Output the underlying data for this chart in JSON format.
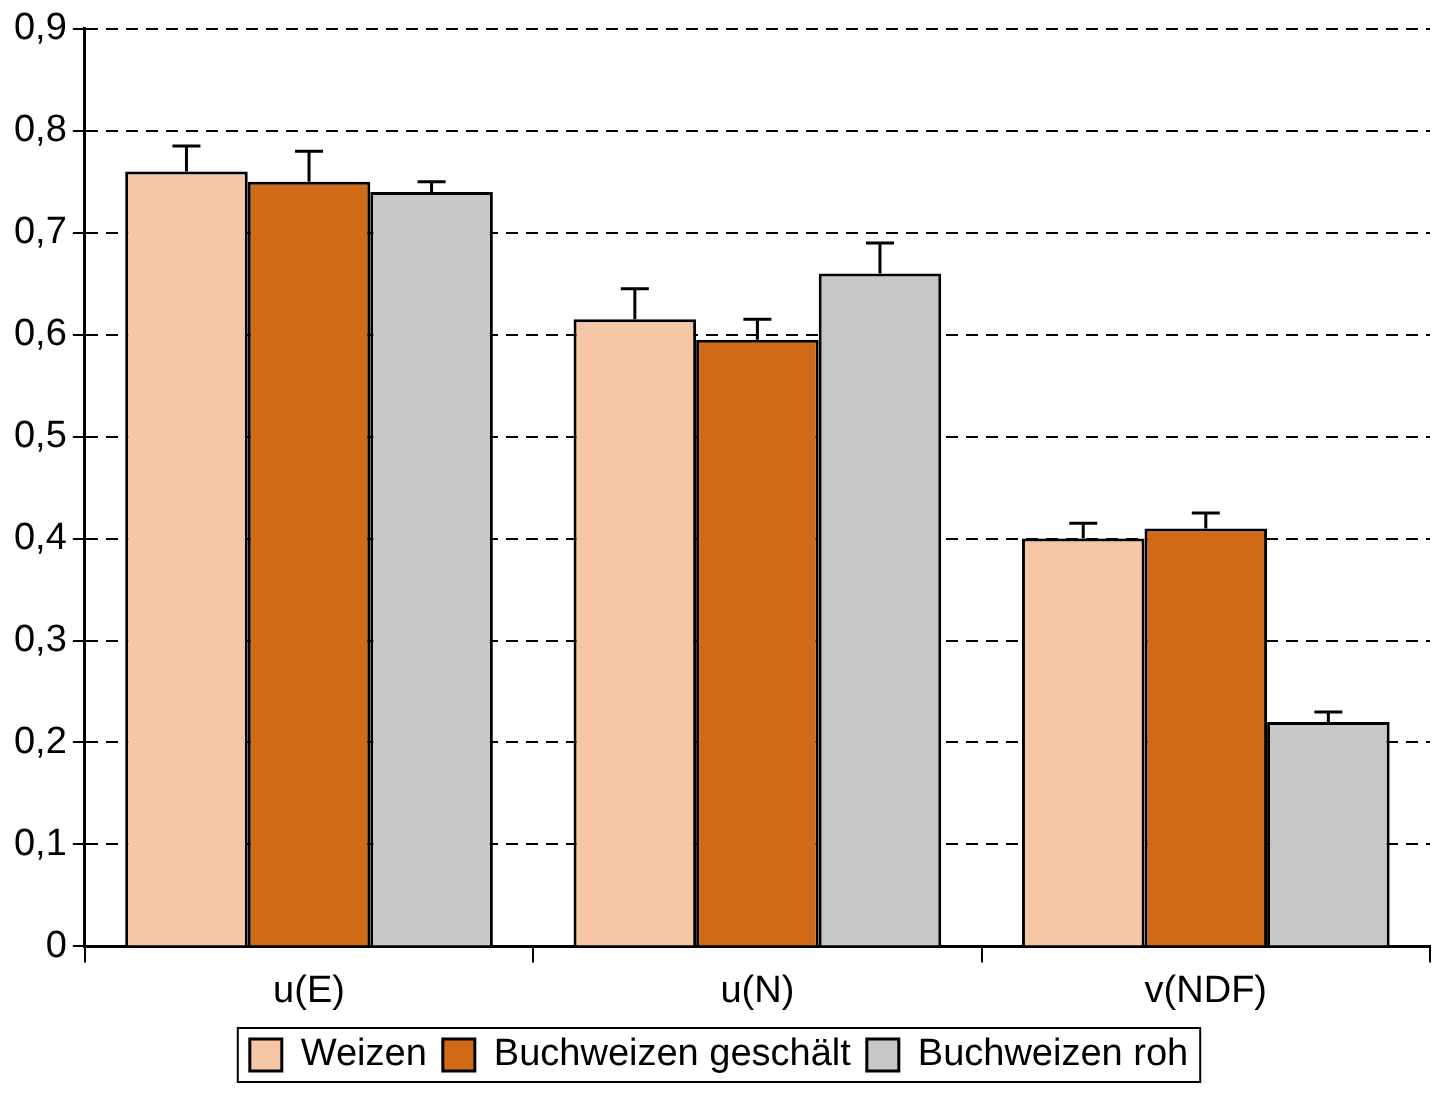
{
  "chart_data": {
    "type": "bar",
    "categories": [
      "u(E)",
      "u(N)",
      "v(NDF)"
    ],
    "series": [
      {
        "name": "Weizen",
        "color": "#f5c7a6",
        "values": [
          0.76,
          0.615,
          0.4
        ],
        "errors": [
          [
            0.76,
            0.785
          ],
          [
            0.615,
            0.645
          ],
          [
            0.4,
            0.415
          ]
        ]
      },
      {
        "name": "Buchweizen geschält",
        "color": "#d06a17",
        "values": [
          0.75,
          0.595,
          0.41
        ],
        "errors": [
          [
            0.75,
            0.78
          ],
          [
            0.595,
            0.615
          ],
          [
            0.41,
            0.425
          ]
        ]
      },
      {
        "name": "Buchweizen roh",
        "color": "#c8c8ca",
        "values": [
          0.74,
          0.66,
          0.22
        ],
        "errors": [
          [
            0.74,
            0.75
          ],
          [
            0.66,
            0.69
          ],
          [
            0.22,
            0.23
          ]
        ]
      }
    ],
    "ylim": [
      0,
      0.9
    ],
    "yticks": [
      0,
      {
        "value": 0.1,
        "label": "0,1"
      },
      {
        "value": 0.2,
        "label": "0,2"
      },
      {
        "value": 0.3,
        "label": "0,3"
      },
      {
        "value": 0.4,
        "label": "0,4"
      },
      {
        "value": 0.5,
        "label": "0,5"
      },
      {
        "value": 0.6,
        "label": "0,6"
      },
      {
        "value": 0.7,
        "label": "0,7"
      },
      {
        "value": 0.8,
        "label": "0,8"
      },
      {
        "value": 0.9,
        "label": "0,9"
      }
    ],
    "grid": "y",
    "legend": "bottom"
  }
}
